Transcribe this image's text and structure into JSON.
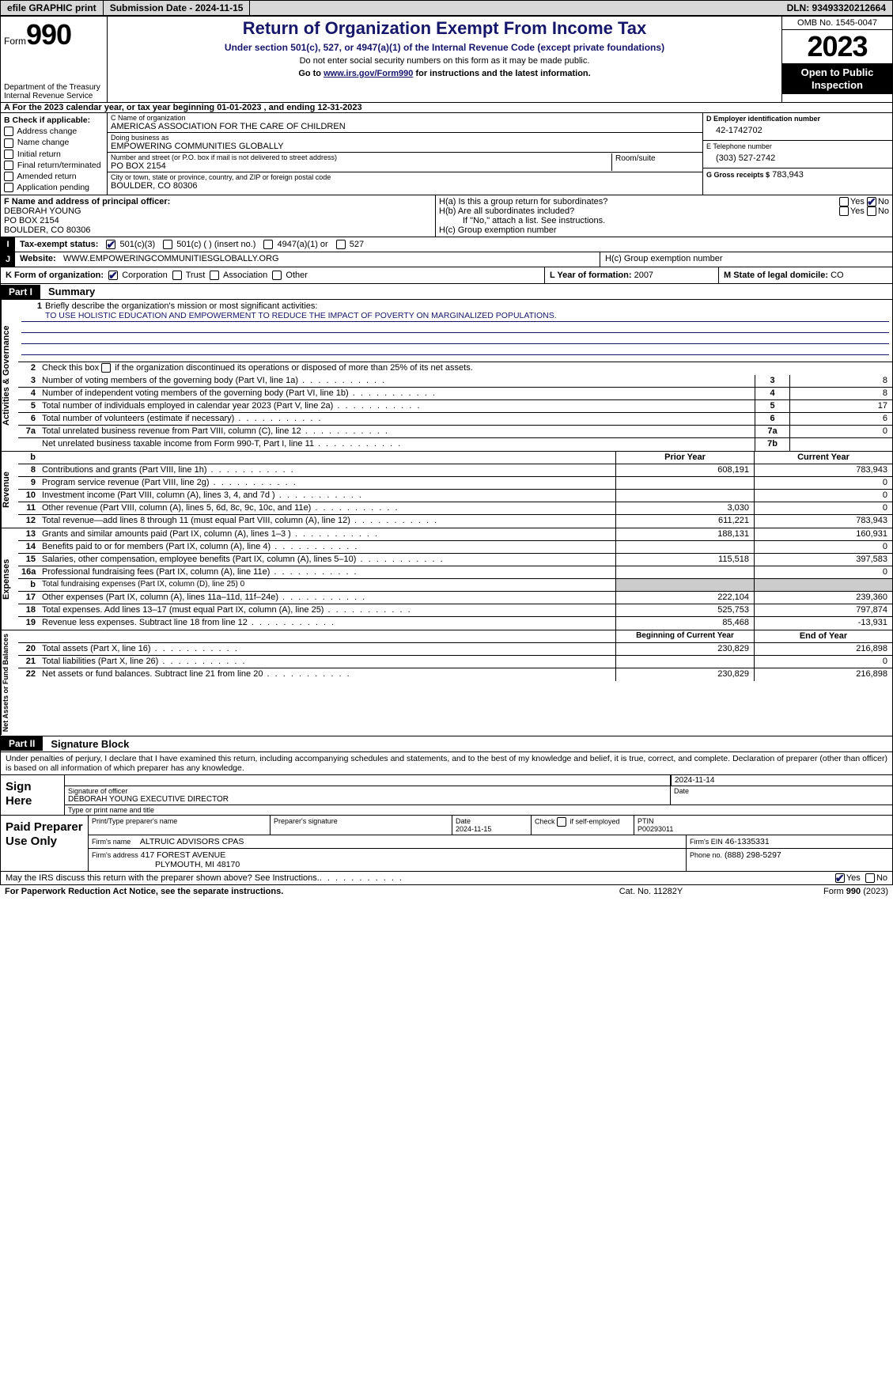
{
  "colors": {
    "heading": "#16166b",
    "black": "#000000",
    "gray_bar": "#d8d8d8",
    "shaded": "#cccccc"
  },
  "topbar": {
    "efile": "efile GRAPHIC print",
    "submission": "Submission Date - 2024-11-15",
    "dln": "DLN: 93493320212664"
  },
  "header": {
    "form_label": "Form",
    "form_number": "990",
    "dept": "Department of the Treasury",
    "irs": "Internal Revenue Service",
    "title": "Return of Organization Exempt From Income Tax",
    "sub1": "Under section 501(c), 527, or 4947(a)(1) of the Internal Revenue Code (except private foundations)",
    "sub2": "Do not enter social security numbers on this form as it may be made public.",
    "sub3_pre": "Go to ",
    "sub3_link": "www.irs.gov/Form990",
    "sub3_post": " for instructions and the latest information.",
    "omb": "OMB No. 1545-0047",
    "year": "2023",
    "inspection": "Open to Public Inspection"
  },
  "row_a": "A   For the 2023 calendar year, or tax year beginning 01-01-2023    , and ending 12-31-2023",
  "box_b": {
    "label": "B Check if applicable:",
    "items": [
      "Address change",
      "Name change",
      "Initial return",
      "Final return/terminated",
      "Amended return",
      "Application pending"
    ]
  },
  "box_c": {
    "name_lbl": "C Name of organization",
    "name": "AMERICAS ASSOCIATION FOR THE CARE OF CHILDREN",
    "dba_lbl": "Doing business as",
    "dba": "EMPOWERING COMMUNITIES GLOBALLY",
    "addr_lbl": "Number and street (or P.O. box if mail is not delivered to street address)",
    "addr": "PO BOX 2154",
    "room_lbl": "Room/suite",
    "city_lbl": "City or town, state or province, country, and ZIP or foreign postal code",
    "city": "BOULDER, CO  80306"
  },
  "box_d": {
    "ein_lbl": "D Employer identification number",
    "ein": "42-1742702",
    "phone_lbl": "E Telephone number",
    "phone": "(303) 527-2742",
    "gross_lbl": "G Gross receipts $",
    "gross": "783,943"
  },
  "box_f": {
    "lbl": "F  Name and address of principal officer:",
    "name": "DEBORAH YOUNG",
    "addr1": "PO BOX 2154",
    "addr2": "BOULDER, CO  80306"
  },
  "box_h": {
    "ha": "H(a)  Is this a group return for subordinates?",
    "hb": "H(b)  Are all subordinates included?",
    "hb2": "If \"No,\" attach a list. See instructions.",
    "hc": "H(c)  Group exemption number",
    "yes": "Yes",
    "no": "No"
  },
  "tax_status": {
    "lbl": "Tax-exempt status:",
    "o1": "501(c)(3)",
    "o2": "501(c) (  ) (insert no.)",
    "o3": "4947(a)(1) or",
    "o4": "527"
  },
  "website": {
    "lbl": "Website:",
    "val": "WWW.EMPOWERINGCOMMUNITIESGLOBALLY.ORG"
  },
  "row_k": {
    "lbl": "K Form of organization:",
    "o1": "Corporation",
    "o2": "Trust",
    "o3": "Association",
    "o4": "Other"
  },
  "row_l": {
    "lbl": "L Year of formation:",
    "val": "2007"
  },
  "row_m": {
    "lbl": "M State of legal domicile:",
    "val": "CO"
  },
  "part1": {
    "tag": "Part I",
    "title": "Summary"
  },
  "summary": {
    "gov_label": "Activities & Governance",
    "rev_label": "Revenue",
    "exp_label": "Expenses",
    "net_label": "Net Assets or Fund Balances",
    "l1_n": "1",
    "l1_t": "Briefly describe the organization's mission or most significant activities:",
    "l1_mission": "TO USE HOLISTIC EDUCATION AND EMPOWERMENT TO REDUCE THE IMPACT OF POVERTY ON MARGINALIZED POPULATIONS.",
    "l2_n": "2",
    "l2_t": "Check this box       if the organization discontinued its operations or disposed of more than 25% of its net assets.",
    "lines_gov": [
      {
        "n": "3",
        "t": "Number of voting members of the governing body (Part VI, line 1a)",
        "box": "3",
        "v": "8"
      },
      {
        "n": "4",
        "t": "Number of independent voting members of the governing body (Part VI, line 1b)",
        "box": "4",
        "v": "8"
      },
      {
        "n": "5",
        "t": "Total number of individuals employed in calendar year 2023 (Part V, line 2a)",
        "box": "5",
        "v": "17"
      },
      {
        "n": "6",
        "t": "Total number of volunteers (estimate if necessary)",
        "box": "6",
        "v": "6"
      },
      {
        "n": "7a",
        "t": "Total unrelated business revenue from Part VIII, column (C), line 12",
        "box": "7a",
        "v": "0"
      },
      {
        "n": "",
        "t": "Net unrelated business taxable income from Form 990-T, Part I, line 11",
        "box": "7b",
        "v": ""
      }
    ],
    "col_hdr": {
      "b": "b",
      "py": "Prior Year",
      "cy": "Current Year"
    },
    "lines_rev": [
      {
        "n": "8",
        "t": "Contributions and grants (Part VIII, line 1h)",
        "py": "608,191",
        "cy": "783,943"
      },
      {
        "n": "9",
        "t": "Program service revenue (Part VIII, line 2g)",
        "py": "",
        "cy": "0"
      },
      {
        "n": "10",
        "t": "Investment income (Part VIII, column (A), lines 3, 4, and 7d )",
        "py": "",
        "cy": "0"
      },
      {
        "n": "11",
        "t": "Other revenue (Part VIII, column (A), lines 5, 6d, 8c, 9c, 10c, and 11e)",
        "py": "3,030",
        "cy": "0"
      },
      {
        "n": "12",
        "t": "Total revenue—add lines 8 through 11 (must equal Part VIII, column (A), line 12)",
        "py": "611,221",
        "cy": "783,943"
      }
    ],
    "lines_exp": [
      {
        "n": "13",
        "t": "Grants and similar amounts paid (Part IX, column (A), lines 1–3 )",
        "py": "188,131",
        "cy": "160,931"
      },
      {
        "n": "14",
        "t": "Benefits paid to or for members (Part IX, column (A), line 4)",
        "py": "",
        "cy": "0"
      },
      {
        "n": "15",
        "t": "Salaries, other compensation, employee benefits (Part IX, column (A), lines 5–10)",
        "py": "115,518",
        "cy": "397,583"
      },
      {
        "n": "16a",
        "t": "Professional fundraising fees (Part IX, column (A), line 11e)",
        "py": "",
        "cy": "0"
      },
      {
        "n": "b",
        "t": "Total fundraising expenses (Part IX, column (D), line 25) 0",
        "py": "SHADE",
        "cy": "SHADE",
        "small": true
      },
      {
        "n": "17",
        "t": "Other expenses (Part IX, column (A), lines 11a–11d, 11f–24e)",
        "py": "222,104",
        "cy": "239,360"
      },
      {
        "n": "18",
        "t": "Total expenses. Add lines 13–17 (must equal Part IX, column (A), line 25)",
        "py": "525,753",
        "cy": "797,874"
      },
      {
        "n": "19",
        "t": "Revenue less expenses. Subtract line 18 from line 12",
        "py": "85,468",
        "cy": "-13,931"
      }
    ],
    "net_hdr": {
      "py": "Beginning of Current Year",
      "cy": "End of Year"
    },
    "lines_net": [
      {
        "n": "20",
        "t": "Total assets (Part X, line 16)",
        "py": "230,829",
        "cy": "216,898"
      },
      {
        "n": "21",
        "t": "Total liabilities (Part X, line 26)",
        "py": "",
        "cy": "0"
      },
      {
        "n": "22",
        "t": "Net assets or fund balances. Subtract line 21 from line 20",
        "py": "230,829",
        "cy": "216,898"
      }
    ]
  },
  "part2": {
    "tag": "Part II",
    "title": "Signature Block"
  },
  "declaration": "Under penalties of perjury, I declare that I have examined this return, including accompanying schedules and statements, and to the best of my knowledge and belief, it is true, correct, and complete. Declaration of preparer (other than officer) is based on all information of which preparer has any knowledge.",
  "sign": {
    "lab": "Sign Here",
    "sig_lbl": "Signature of officer",
    "date_lbl": "Date",
    "date": "2024-11-14",
    "officer": "DEBORAH YOUNG  EXECUTIVE DIRECTOR",
    "type_lbl": "Type or print name and title"
  },
  "preparer": {
    "lab": "Paid Preparer Use Only",
    "name_lbl": "Print/Type preparer's name",
    "sig_lbl": "Preparer's signature",
    "date_lbl": "Date",
    "date": "2024-11-15",
    "check_lbl": "Check        if self-employed",
    "ptin_lbl": "PTIN",
    "ptin": "P00293011",
    "firm_name_lbl": "Firm's name",
    "firm_name": "ALTRUIC ADVISORS CPAS",
    "firm_ein_lbl": "Firm's EIN",
    "firm_ein": "46-1335331",
    "firm_addr_lbl": "Firm's address",
    "firm_addr1": "417 FOREST AVENUE",
    "firm_addr2": "PLYMOUTH, MI  48170",
    "phone_lbl": "Phone no.",
    "phone": "(888) 298-5297"
  },
  "discuss": {
    "t": "May the IRS discuss this return with the preparer shown above? See Instructions.",
    "yes": "Yes",
    "no": "No"
  },
  "footer": {
    "l": "For Paperwork Reduction Act Notice, see the separate instructions.",
    "m": "Cat. No. 11282Y",
    "r": "Form 990 (2023)"
  }
}
